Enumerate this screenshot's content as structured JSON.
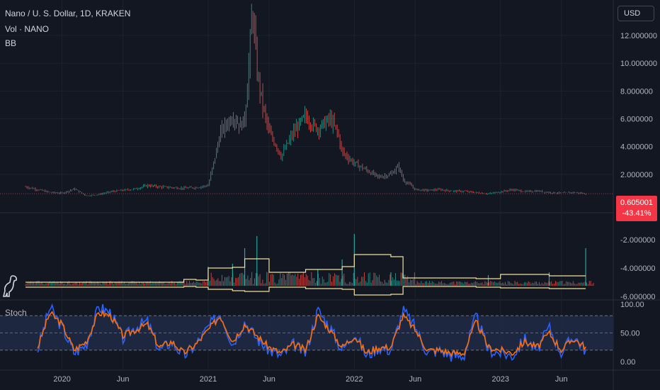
{
  "header": {
    "title": "Nano / U. S. Dollar, 1D, KRAKEN",
    "vol_label": "Vol · NANO",
    "bb_label": "BB",
    "currency_button": "USD"
  },
  "price_tag": {
    "price": "0.605001",
    "change": "-43.41%"
  },
  "colors": {
    "background": "#131722",
    "grid": "#1e222d",
    "up": "#26a69a",
    "down": "#ef5350",
    "bb_band": "#f0e09a",
    "stoch_k": "#2962ff",
    "stoch_d": "#ff6d00",
    "stoch_band_fill": "#1f2a44",
    "price_tag": "#f23645"
  },
  "icons": {
    "logo": "dinosaur-icon"
  },
  "chart_data": [
    {
      "type": "line",
      "name": "price",
      "x": [
        "2019-10",
        "2019-11",
        "2019-12",
        "2020-01",
        "2020-02",
        "2020-03",
        "2020-04",
        "2020-05",
        "2020-06",
        "2020-07",
        "2020-08",
        "2020-09",
        "2020-10",
        "2020-11",
        "2020-12",
        "2021-01",
        "2021-01-20",
        "2021-02",
        "2021-03",
        "2021-03-20",
        "2021-04",
        "2021-04-10",
        "2021-04-20",
        "2021-05",
        "2021-05-15",
        "2021-06",
        "2021-06-20",
        "2021-07",
        "2021-08",
        "2021-09",
        "2021-09-20",
        "2021-10",
        "2021-11",
        "2021-11-20",
        "2021-12",
        "2022-01",
        "2022-02",
        "2022-03",
        "2022-04",
        "2022-04-20",
        "2022-05",
        "2022-05-20",
        "2022-06",
        "2022-07",
        "2022-08",
        "2022-09",
        "2022-10",
        "2022-11",
        "2022-12",
        "2023-01",
        "2023-02",
        "2023-03",
        "2023-04",
        "2023-05",
        "2023-06",
        "2023-07",
        "2023-08"
      ],
      "values": [
        1.1,
        0.9,
        0.7,
        0.65,
        0.95,
        0.45,
        0.55,
        0.75,
        0.85,
        0.95,
        1.2,
        1.1,
        1.05,
        1.0,
        1.05,
        1.2,
        3.5,
        5.0,
        6.2,
        5.5,
        6.0,
        9.5,
        14.0,
        9.5,
        7.0,
        5.0,
        4.0,
        3.3,
        5.0,
        6.2,
        5.5,
        5.3,
        6.0,
        5.0,
        3.6,
        2.8,
        2.3,
        1.8,
        2.0,
        2.6,
        1.6,
        1.2,
        0.9,
        0.85,
        0.9,
        0.8,
        0.78,
        0.68,
        0.6,
        0.75,
        0.9,
        0.75,
        0.8,
        0.7,
        0.65,
        0.7,
        0.605
      ],
      "ylim": [
        0,
        14
      ],
      "yticks": [
        "2.000000",
        "4.000000",
        "6.000000",
        "8.000000",
        "10.000000",
        "12.000000"
      ],
      "ytick_values": [
        2,
        4,
        6,
        8,
        10,
        12
      ]
    },
    {
      "type": "area",
      "name": "volume_bb",
      "axis_ticks": [
        "-2.000000",
        "-4.000000",
        "-6.000000"
      ],
      "axis_values": [
        -2,
        -4,
        -6
      ],
      "ylim": [
        -6,
        -1.5
      ],
      "bb_segments": [
        {
          "x0": "2019-10",
          "x1": "2020-11",
          "upper": -5.0,
          "lower": -5.35
        },
        {
          "x0": "2020-11",
          "x1": "2020-12",
          "upper": -4.8,
          "lower": -5.3
        },
        {
          "x0": "2020-12",
          "x1": "2021-01",
          "upper": -4.85,
          "lower": -5.35
        },
        {
          "x0": "2021-01",
          "x1": "2021-03",
          "upper": -4.0,
          "lower": -5.5
        },
        {
          "x0": "2021-03",
          "x1": "2021-04",
          "upper": -3.95,
          "lower": -5.6
        },
        {
          "x0": "2021-04",
          "x1": "2021-06",
          "upper": -3.35,
          "lower": -5.65
        },
        {
          "x0": "2021-06",
          "x1": "2021-09",
          "upper": -4.3,
          "lower": -5.35
        },
        {
          "x0": "2021-09",
          "x1": "2021-12",
          "upper": -4.1,
          "lower": -5.45
        },
        {
          "x0": "2021-12",
          "x1": "2022-01",
          "upper": -3.9,
          "lower": -5.5
        },
        {
          "x0": "2022-01",
          "x1": "2022-04",
          "upper": -3.05,
          "lower": -5.9
        },
        {
          "x0": "2022-04",
          "x1": "2022-05",
          "upper": -3.2,
          "lower": -5.85
        },
        {
          "x0": "2022-05",
          "x1": "2022-11",
          "upper": -4.7,
          "lower": -5.3
        },
        {
          "x0": "2022-11",
          "x1": "2023-01",
          "upper": -4.75,
          "lower": -5.35
        },
        {
          "x0": "2023-01",
          "x1": "2023-05",
          "upper": -4.45,
          "lower": -5.4
        },
        {
          "x0": "2023-05",
          "x1": "2023-08",
          "upper": -4.55,
          "lower": -5.45
        }
      ],
      "volume_spikes": [
        {
          "x": "2021-01",
          "value": -3.9
        },
        {
          "x": "2021-03",
          "value": -3.7
        },
        {
          "x": "2021-04",
          "value": -2.6
        },
        {
          "x": "2021-05",
          "value": -1.75
        },
        {
          "x": "2021-10",
          "value": -4.1
        },
        {
          "x": "2021-12",
          "value": -3.4
        },
        {
          "x": "2022-01",
          "value": -1.6
        },
        {
          "x": "2022-04",
          "value": -4.3
        },
        {
          "x": "2022-12",
          "value": -4.5
        },
        {
          "x": "2023-05",
          "value": -4.3
        },
        {
          "x": "2023-08",
          "value": -2.6
        }
      ]
    },
    {
      "type": "line",
      "name": "stoch",
      "yticks": [
        "100.00",
        "50.00",
        "0.00"
      ],
      "ytick_values": [
        100,
        50,
        0
      ],
      "ylim": [
        0,
        100
      ],
      "band": [
        20,
        80
      ],
      "x": [
        "2019-11",
        "2019-12",
        "2020-01",
        "2020-02",
        "2020-03",
        "2020-04",
        "2020-05",
        "2020-06",
        "2020-07",
        "2020-08",
        "2020-09",
        "2020-10",
        "2020-11",
        "2020-12",
        "2021-01",
        "2021-02",
        "2021-03",
        "2021-04",
        "2021-05",
        "2021-06",
        "2021-07",
        "2021-08",
        "2021-09",
        "2021-10",
        "2021-11",
        "2021-12",
        "2022-01",
        "2022-02",
        "2022-03",
        "2022-04",
        "2022-05",
        "2022-06",
        "2022-07",
        "2022-08",
        "2022-09",
        "2022-10",
        "2022-11",
        "2022-12",
        "2023-01",
        "2023-02",
        "2023-03",
        "2023-04",
        "2023-05",
        "2023-06",
        "2023-07",
        "2023-08"
      ],
      "values": [
        20,
        95,
        60,
        15,
        30,
        95,
        85,
        40,
        60,
        70,
        20,
        35,
        10,
        30,
        60,
        85,
        30,
        70,
        40,
        20,
        10,
        30,
        15,
        90,
        60,
        20,
        50,
        10,
        25,
        20,
        90,
        60,
        15,
        20,
        10,
        10,
        80,
        20,
        15,
        10,
        40,
        20,
        60,
        15,
        45,
        20
      ],
      "d_values": [
        25,
        85,
        65,
        20,
        35,
        85,
        80,
        45,
        55,
        65,
        25,
        35,
        15,
        30,
        55,
        80,
        35,
        65,
        45,
        25,
        15,
        30,
        20,
        80,
        55,
        25,
        45,
        15,
        25,
        25,
        80,
        55,
        20,
        20,
        15,
        15,
        70,
        25,
        20,
        15,
        35,
        25,
        50,
        20,
        40,
        25
      ]
    }
  ],
  "x_axis": {
    "labels": [
      "2020",
      "Jun",
      "2021",
      "Jun",
      "2022",
      "Jun",
      "2023",
      "Jun"
    ],
    "dates": [
      "2020-01",
      "2020-06",
      "2021-01",
      "2021-06",
      "2022-01",
      "2022-06",
      "2023-01",
      "2023-06"
    ],
    "start": "2019-10",
    "end": "2023-09"
  }
}
